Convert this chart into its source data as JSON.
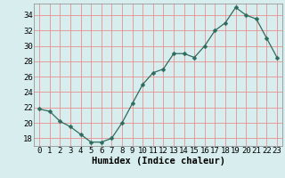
{
  "x": [
    0,
    1,
    2,
    3,
    4,
    5,
    6,
    7,
    8,
    9,
    10,
    11,
    12,
    13,
    14,
    15,
    16,
    17,
    18,
    19,
    20,
    21,
    22,
    23
  ],
  "y": [
    21.8,
    21.5,
    20.2,
    19.5,
    18.5,
    17.5,
    17.5,
    18.0,
    20.0,
    22.5,
    25.0,
    26.5,
    27.0,
    29.0,
    29.0,
    28.5,
    30.0,
    32.0,
    33.0,
    35.0,
    34.0,
    33.5,
    31.0,
    28.5
  ],
  "line_color": "#2e6b5e",
  "marker": "D",
  "marker_size": 2.5,
  "bg_color": "#d8eeee",
  "grid_color": "#e89090",
  "tick_label_color": "#000000",
  "xlabel": "Humidex (Indice chaleur)",
  "xlim": [
    -0.5,
    23.5
  ],
  "ylim": [
    17,
    35.5
  ],
  "yticks": [
    18,
    20,
    22,
    24,
    26,
    28,
    30,
    32,
    34
  ],
  "xticks": [
    0,
    1,
    2,
    3,
    4,
    5,
    6,
    7,
    8,
    9,
    10,
    11,
    12,
    13,
    14,
    15,
    16,
    17,
    18,
    19,
    20,
    21,
    22,
    23
  ],
  "xlabel_fontsize": 7.5,
  "tick_fontsize": 6.5
}
